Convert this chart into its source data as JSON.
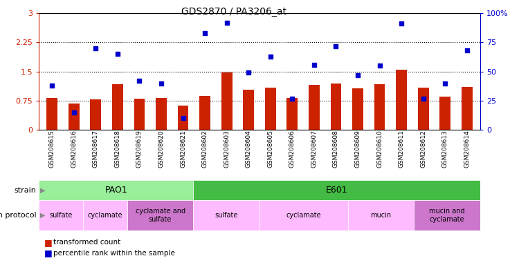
{
  "title": "GDS2870 / PA3206_at",
  "samples": [
    "GSM208615",
    "GSM208616",
    "GSM208617",
    "GSM208618",
    "GSM208619",
    "GSM208620",
    "GSM208621",
    "GSM208602",
    "GSM208603",
    "GSM208604",
    "GSM208605",
    "GSM208606",
    "GSM208607",
    "GSM208608",
    "GSM208609",
    "GSM208610",
    "GSM208611",
    "GSM208612",
    "GSM208613",
    "GSM208614"
  ],
  "transformed_count": [
    0.82,
    0.68,
    0.78,
    1.18,
    0.8,
    0.82,
    0.62,
    0.88,
    1.47,
    1.03,
    1.08,
    0.82,
    1.15,
    1.2,
    1.07,
    1.18,
    1.55,
    1.08,
    0.85,
    1.1
  ],
  "percentile_rank": [
    38,
    15,
    70,
    65,
    42,
    40,
    10,
    83,
    92,
    49,
    63,
    27,
    56,
    72,
    47,
    55,
    91,
    27,
    40,
    68
  ],
  "ylim_left": [
    0,
    3
  ],
  "ylim_right": [
    0,
    100
  ],
  "yticks_left": [
    0,
    0.75,
    1.5,
    2.25,
    3
  ],
  "yticks_right": [
    0,
    25,
    50,
    75,
    100
  ],
  "hlines": [
    0.75,
    1.5,
    2.25
  ],
  "bar_color": "#cc2200",
  "dot_color": "#0000cc",
  "left_axis_color": "#cc2200",
  "right_axis_color": "#0000cc",
  "strain_groups": [
    {
      "text": "PAO1",
      "start": 0,
      "end": 6,
      "color": "#99ee99"
    },
    {
      "text": "E601",
      "start": 7,
      "end": 19,
      "color": "#44bb44"
    }
  ],
  "growth_groups": [
    {
      "text": "sulfate",
      "start": 0,
      "end": 1,
      "color": "#ffbbff"
    },
    {
      "text": "cyclamate",
      "start": 2,
      "end": 3,
      "color": "#ffbbff"
    },
    {
      "text": "cyclamate and\nsulfate",
      "start": 4,
      "end": 6,
      "color": "#cc77cc"
    },
    {
      "text": "sulfate",
      "start": 7,
      "end": 9,
      "color": "#ffbbff"
    },
    {
      "text": "cyclamate",
      "start": 10,
      "end": 13,
      "color": "#ffbbff"
    },
    {
      "text": "mucin",
      "start": 14,
      "end": 16,
      "color": "#ffbbff"
    },
    {
      "text": "mucin and\ncyclamate",
      "start": 17,
      "end": 19,
      "color": "#cc77cc"
    }
  ]
}
